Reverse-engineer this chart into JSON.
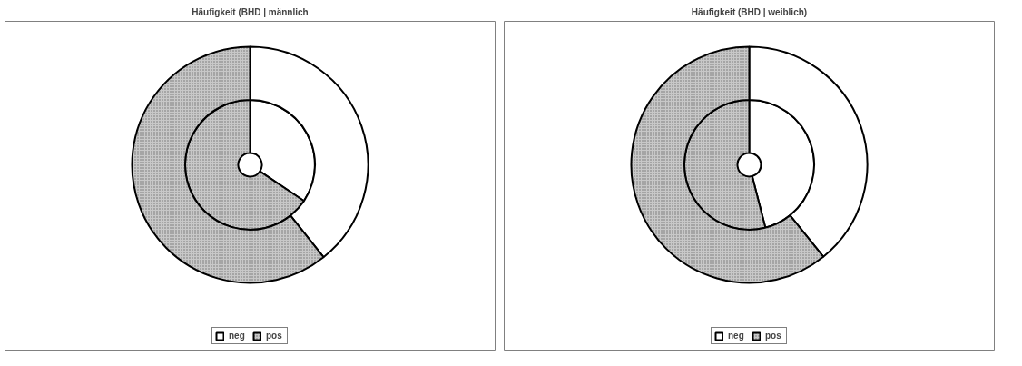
{
  "chart_data": [
    {
      "type": "donut",
      "title": "Häufigkeit (BHD | männlich",
      "categories": [
        "neg",
        "pos"
      ],
      "legend": "bottom",
      "series": [
        {
          "values": [
            34.4,
            65.6
          ],
          "colors": [
            "#ffffff",
            "#c8c8c8"
          ]
        },
        {
          "values": [
            39.3,
            60.7
          ],
          "colors": [
            "#ffffff",
            "#c8c8c8"
          ]
        }
      ]
    },
    {
      "type": "donut",
      "title": "Häufigkeit (BHD | weiblich)",
      "categories": [
        "neg",
        "pos"
      ],
      "legend": "bottom",
      "series": [
        {
          "values": [
            46.0,
            54.0
          ],
          "colors": [
            "#ffffff",
            "#c8c8c8"
          ]
        },
        {
          "values": [
            39.2,
            60.8
          ],
          "colors": [
            "#ffffff",
            "#c8c8c8"
          ]
        }
      ]
    }
  ]
}
